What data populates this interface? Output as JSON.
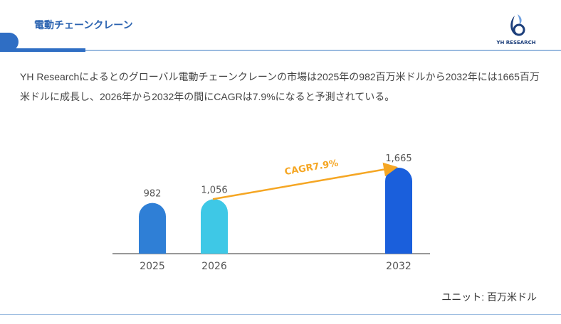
{
  "header": {
    "title": "電動チェーンクレーン",
    "logo_text": "YH RESEARCH"
  },
  "description": "YH Researchによるとのグローバル電動チェーンクレーンの市場は2025年の982百万米ドルから2032年には1665百万米ドルに成長し、2026年から2032年の間にCAGRは7.9%になると予測されている。",
  "unit_label": "ユニット: 百万米ドル",
  "chart_data": {
    "type": "bar",
    "categories": [
      "2025",
      "2026",
      "2032"
    ],
    "values": [
      982,
      1056,
      1665
    ],
    "value_labels": [
      "982",
      "1,056",
      "1,665"
    ],
    "colors": [
      "#2f7fd6",
      "#3ec8e6",
      "#1a5fdc"
    ],
    "ylim": [
      0,
      1665
    ],
    "annotation": {
      "text": "CAGR7.9%",
      "from": "2026",
      "to": "2032",
      "color": "#f5a623"
    },
    "grid": false
  }
}
